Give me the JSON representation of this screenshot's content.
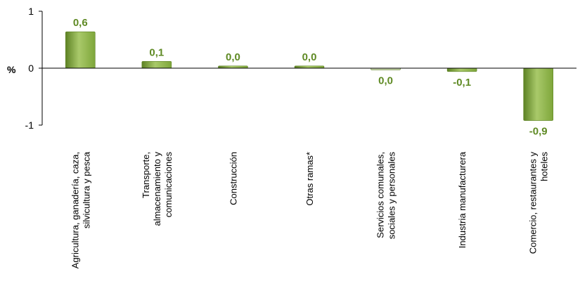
{
  "chart_data": {
    "type": "bar",
    "ylabel": "%",
    "ylim": [
      -1,
      1
    ],
    "yticks": [
      1,
      0,
      -1
    ],
    "ytick_labels": [
      "1",
      "0",
      "-1"
    ],
    "categories": [
      [
        "Agricultura, ganadería, caza,",
        "silvicultura y pesca"
      ],
      [
        "Transporte,",
        "almacenamiento y",
        "comunicaciones"
      ],
      [
        "Construcción"
      ],
      [
        "Otras ramas*"
      ],
      [
        "Servicios comunales,",
        "sociales y personales"
      ],
      [
        "Industria manufacturera"
      ],
      [
        "Comercio, restaurantes y",
        "hoteles"
      ]
    ],
    "values": [
      0.64,
      0.12,
      0.04,
      0.04,
      -0.03,
      -0.06,
      -0.92
    ],
    "data_labels": [
      "0,6",
      "0,1",
      "0,0",
      "0,0",
      "0,0",
      "-0,1",
      "-0,9"
    ],
    "bar_color": "#7ea63a",
    "bar_color_light": "#a9c96a",
    "bar_color_dark": "#5d8224",
    "neutral_bar_color": "#c7d3b0",
    "label_color": "#5f8a24",
    "grid": false,
    "legend": "none"
  }
}
